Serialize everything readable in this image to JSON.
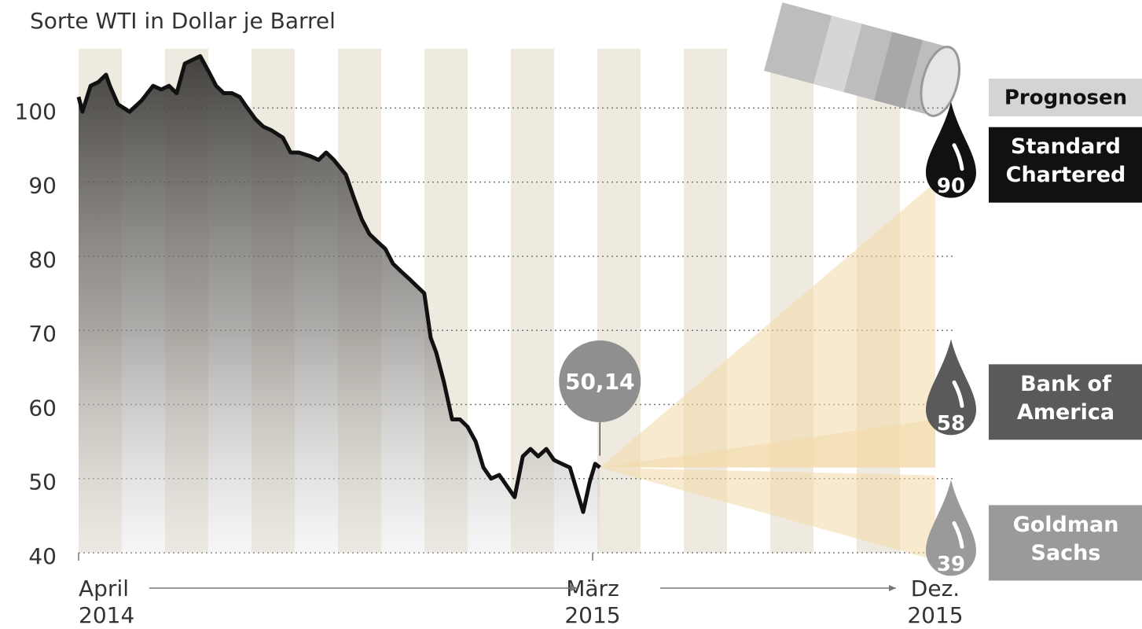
{
  "chart_data": {
    "type": "line",
    "subtitle": "Sorte WTI in Dollar je Barrel",
    "x": [
      0,
      0.09,
      0.28,
      0.46,
      0.64,
      0.73,
      0.92,
      1.19,
      1.47,
      1.74,
      1.93,
      2.11,
      2.29,
      2.48,
      2.66,
      2.84,
      3.03,
      3.21,
      3.39,
      3.58,
      3.76,
      3.94,
      4.13,
      4.31,
      4.5,
      4.77,
      4.95,
      5.14,
      5.41,
      5.6,
      5.78,
      5.96,
      6.24,
      6.42,
      6.61,
      6.79,
      6.97,
      7.16,
      7.34,
      7.52,
      7.71,
      7.89,
      8.07,
      8.22,
      8.35,
      8.53,
      8.72,
      8.9,
      9.08,
      9.27,
      9.45,
      9.63,
      9.82,
      10.0,
      10.18,
      10.37,
      10.55,
      10.73,
      10.92,
      11.1,
      11.28,
      11.47,
      11.65,
      11.78,
      11.93,
      12.06,
      12.17
    ],
    "series": [
      {
        "color": "#111111",
        "values": [
          101.5,
          99.5,
          103,
          103.5,
          104.5,
          103,
          100.5,
          99.5,
          101,
          103,
          102.5,
          103,
          102,
          106,
          106.5,
          107,
          105,
          103,
          102,
          102,
          101.5,
          100,
          98.5,
          97.5,
          97,
          96,
          94,
          94,
          93.5,
          93,
          94,
          93,
          91,
          88,
          85,
          83,
          82,
          81,
          79,
          78,
          77,
          76,
          75,
          69,
          67,
          63,
          58,
          58,
          57,
          55,
          51.5,
          50,
          50.5,
          49,
          47.5,
          53,
          54,
          53,
          54,
          52.5,
          52,
          51.5,
          48,
          45.5,
          49.5,
          52,
          51.5
        ]
      }
    ],
    "annotation": "50,14",
    "xlim": [
      0,
      20
    ],
    "xticks": [
      {
        "value": 0,
        "label": "April 2014"
      },
      {
        "value": 12,
        "label": "März 2015"
      },
      {
        "value": 20,
        "label": "Dez. 2015"
      }
    ],
    "ylim": [
      40,
      108
    ],
    "yticks": [
      40,
      50,
      60,
      70,
      80,
      90,
      100
    ],
    "grid": true,
    "forecasts": {
      "title": "Prognosen",
      "items": [
        {
          "name_lines": [
            "Standard",
            "Chartered"
          ],
          "value": 90,
          "color": "#111111"
        },
        {
          "name_lines": [
            "Bank of",
            "America"
          ],
          "value": 58,
          "color": "#5a5a5a"
        },
        {
          "name_lines": [
            "Goldman",
            "Sachs"
          ],
          "value": 39,
          "color": "#9a9a9a"
        }
      ]
    }
  }
}
